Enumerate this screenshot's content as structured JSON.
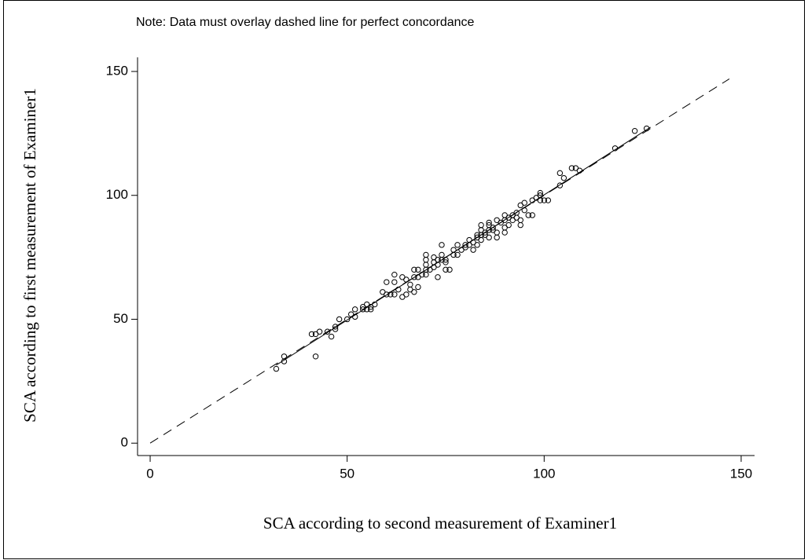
{
  "chart_data": {
    "type": "scatter",
    "note": "Note: Data must overlay dashed line for perfect concordance",
    "x_label": "SCA according to second measurement of Examiner1",
    "y_label": "SCA according to first measurement of Examiner1",
    "xlim": [
      -3.2,
      153.4
    ],
    "ylim": [
      -5,
      155.7
    ],
    "xticks": [
      0,
      50,
      100,
      150
    ],
    "yticks": [
      0,
      50,
      100,
      150
    ],
    "marker_color": "#000000",
    "lines": [
      {
        "style": "dashed",
        "x": [
          0,
          147
        ],
        "y": [
          0,
          147
        ]
      },
      {
        "style": "solid",
        "x": [
          32,
          127
        ],
        "y": [
          31.5,
          127.5
        ]
      }
    ],
    "x": [
      32,
      34,
      34,
      41,
      42,
      42,
      43,
      45,
      46,
      47,
      47,
      48,
      50,
      51,
      52,
      52,
      54,
      54,
      55,
      55,
      56,
      56,
      57,
      59,
      60,
      60,
      61,
      62,
      62,
      62,
      63,
      64,
      64,
      65,
      65,
      66,
      66,
      67,
      67,
      67,
      68,
      68,
      68,
      69,
      70,
      70,
      70,
      70,
      70,
      71,
      72,
      72,
      72,
      73,
      73,
      73,
      74,
      74,
      74,
      75,
      75,
      75,
      76,
      77,
      77,
      78,
      78,
      79,
      80,
      80,
      81,
      81,
      82,
      82,
      83,
      83,
      83,
      84,
      84,
      84,
      84,
      85,
      85,
      86,
      86,
      86,
      86,
      87,
      87,
      88,
      88,
      88,
      89,
      90,
      90,
      90,
      90,
      91,
      91,
      92,
      92,
      93,
      93,
      94,
      94,
      94,
      95,
      95,
      96,
      97,
      97,
      98,
      99,
      99,
      99,
      100,
      101,
      104,
      104,
      105,
      107,
      108,
      109,
      118,
      123,
      126
    ],
    "y": [
      30,
      33,
      35,
      44,
      44,
      35,
      45,
      45,
      43,
      46,
      47,
      50,
      50,
      52,
      51,
      54,
      54,
      55,
      56,
      54,
      55,
      54,
      56,
      61,
      60,
      65,
      60,
      60,
      65,
      68,
      62,
      67,
      59,
      60,
      66,
      62,
      64,
      61,
      67,
      70,
      67,
      70,
      63,
      68,
      68,
      70,
      72,
      74,
      76,
      70,
      71,
      73,
      75,
      72,
      74,
      67,
      74,
      76,
      80,
      73,
      70,
      74,
      70,
      76,
      78,
      76,
      80,
      78,
      79,
      80,
      80,
      82,
      78,
      81,
      80,
      83,
      84,
      82,
      84,
      86,
      88,
      84,
      85,
      83,
      86,
      88,
      89,
      87,
      86,
      83,
      85,
      90,
      89,
      85,
      87,
      90,
      92,
      88,
      91,
      90,
      92,
      91,
      93,
      90,
      88,
      96,
      94,
      97,
      92,
      92,
      98,
      99,
      98,
      100,
      101,
      98,
      98,
      104,
      109,
      107,
      111,
      111,
      110,
      119,
      126,
      127
    ]
  }
}
